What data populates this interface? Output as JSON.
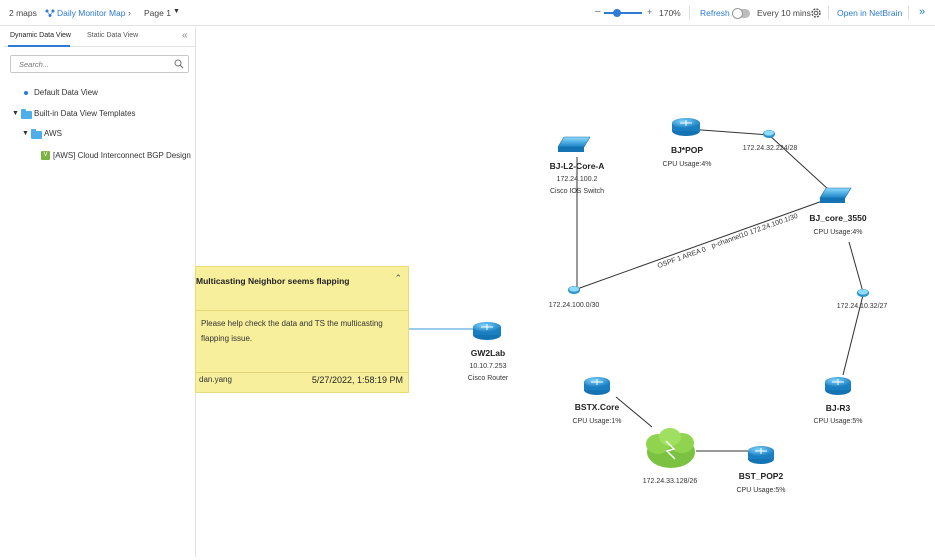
{
  "topbar": {
    "maps_count": "2 maps",
    "map_name": "Daily Monitor Map",
    "page": "Page 1",
    "zoom_minus": "–",
    "zoom_plus": "+",
    "zoom_level": "170%",
    "refresh": "Refresh",
    "refresh_interval": "Every 10 mins",
    "open_in": "Open in NetBrain",
    "expand": "»"
  },
  "sidebar": {
    "tabs": [
      "Dynamic Data View",
      "Static Data View"
    ],
    "collapse": "«",
    "search_placeholder": "Search...",
    "tree": {
      "default": "Default Data View",
      "builtin": "Built-in Data View Templates",
      "aws": "AWS",
      "aws_item": "[AWS] Cloud Interconnect BGP Design"
    }
  },
  "note": {
    "title": "Multicasting Neighbor seems flapping",
    "body": "Please help check the data and TS the multicasting flapping issue.",
    "user": "dan.yang",
    "time": "5/27/2022, 1:58:19 PM"
  },
  "nodes": {
    "bj_l2": {
      "name": "BJ-L2-Core-A",
      "ip": "172.24.100.2",
      "type": "Cisco IOS Switch"
    },
    "bj_pop": {
      "name": "BJ*POP",
      "cpu": "CPU Usage:4%"
    },
    "bj_core": {
      "name": "BJ_core_3550",
      "cpu": "CPU Usage:4%"
    },
    "bj_r3": {
      "name": "BJ-R3",
      "cpu": "CPU Usage:5%"
    },
    "gw2lab": {
      "name": "GW2Lab",
      "ip": "10.10.7.253",
      "type": "Cisco Router"
    },
    "bstx": {
      "name": "BSTX.Core",
      "cpu": "CPU Usage:1%"
    },
    "bst_pop2": {
      "name": "BST_POP2",
      "cpu": "CPU Usage:5%"
    }
  },
  "subnets": {
    "s1": "172.24.32.224/28",
    "s2": "172.24.100.0/30",
    "s3": "172.24.10.32/27",
    "cloud": "172.24.33.128/26"
  },
  "links": {
    "ospf": "OSPF 1 AREA 0",
    "pchannel": "p-channel10 172.24.100.1/30"
  },
  "colors": {
    "accent": "#2e7bd6",
    "note_bg": "#f8ef9c",
    "cloud": "#7cc242"
  }
}
